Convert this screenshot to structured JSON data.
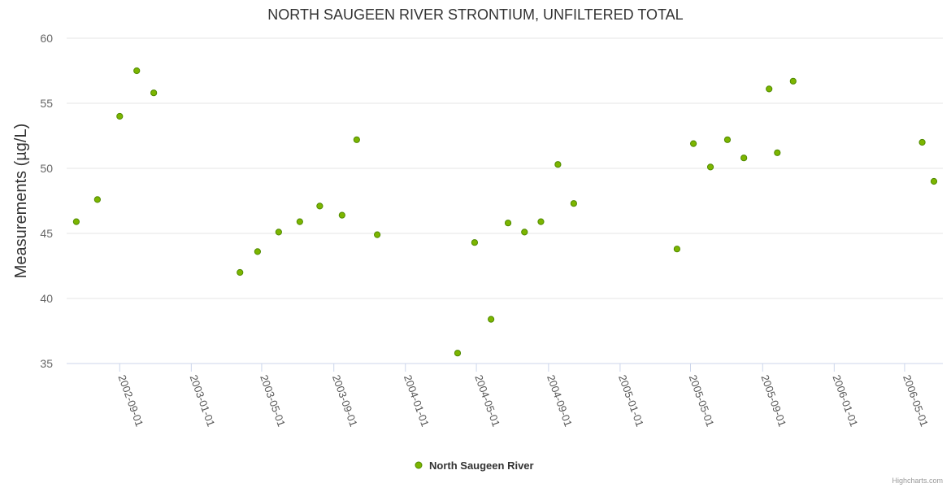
{
  "colors": {
    "series": "#7cb500",
    "series_stroke": "#4f8a00",
    "grid": "#e6e6e6",
    "axis": "#ccd6eb"
  },
  "credits": "Highcharts.com",
  "chart_data": {
    "type": "scatter",
    "title": "NORTH SAUGEEN RIVER STRONTIUM, UNFILTERED TOTAL",
    "xlabel": "",
    "ylabel": "Measurements (µg/L)",
    "xlim": [
      "2002-06-15",
      "2006-06-20"
    ],
    "ylim": [
      35,
      60
    ],
    "yticks": [
      35,
      40,
      45,
      50,
      55,
      60
    ],
    "xticks": [
      "2002-09-01",
      "2003-01-01",
      "2003-05-01",
      "2003-09-01",
      "2004-01-01",
      "2004-05-01",
      "2004-09-01",
      "2005-01-01",
      "2005-05-01",
      "2005-09-01",
      "2006-01-01",
      "2006-05-01"
    ],
    "grid": true,
    "legend_position": "bottom-center",
    "series": [
      {
        "name": "North Saugeen River",
        "points": [
          [
            "2002-06-19",
            45.9
          ],
          [
            "2002-07-25",
            47.6
          ],
          [
            "2002-09-01",
            54.0
          ],
          [
            "2002-09-30",
            57.5
          ],
          [
            "2002-10-29",
            55.8
          ],
          [
            "2003-03-25",
            42.0
          ],
          [
            "2003-04-24",
            43.6
          ],
          [
            "2003-05-30",
            45.1
          ],
          [
            "2003-07-05",
            45.9
          ],
          [
            "2003-08-08",
            47.1
          ],
          [
            "2003-09-15",
            46.4
          ],
          [
            "2003-10-10",
            52.2
          ],
          [
            "2003-11-14",
            44.9
          ],
          [
            "2004-03-30",
            35.8
          ],
          [
            "2004-04-28",
            44.3
          ],
          [
            "2004-05-26",
            38.4
          ],
          [
            "2004-06-24",
            45.8
          ],
          [
            "2004-07-22",
            45.1
          ],
          [
            "2004-08-19",
            45.9
          ],
          [
            "2004-09-17",
            50.3
          ],
          [
            "2004-10-14",
            47.3
          ],
          [
            "2005-04-08",
            43.8
          ],
          [
            "2005-05-06",
            51.9
          ],
          [
            "2005-06-04",
            50.1
          ],
          [
            "2005-07-03",
            52.2
          ],
          [
            "2005-07-31",
            50.8
          ],
          [
            "2005-09-12",
            56.1
          ],
          [
            "2005-09-26",
            51.2
          ],
          [
            "2005-10-23",
            56.7
          ],
          [
            "2006-05-31",
            52.0
          ],
          [
            "2006-06-20",
            49.0
          ]
        ]
      }
    ]
  }
}
